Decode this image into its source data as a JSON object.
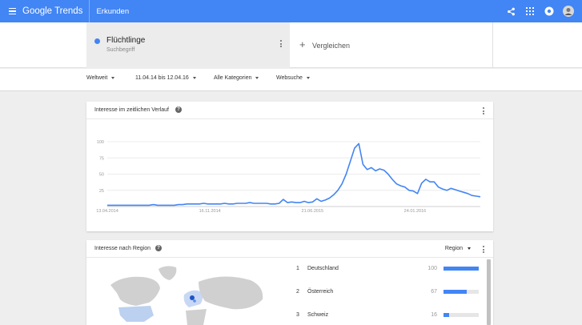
{
  "app": {
    "logo": "Google Trends",
    "section": "Erkunden"
  },
  "term": {
    "name": "Flüchtlinge",
    "type": "Suchbegriff",
    "color": "#4285f4"
  },
  "compare": {
    "label": "Vergleichen"
  },
  "filters": {
    "region": "Weltweit",
    "date_range": "11.04.14 bis 12.04.16",
    "category": "Alle Kategorien",
    "search_type": "Websuche"
  },
  "interest_over_time": {
    "title": "Interesse im zeitlichen Verlauf"
  },
  "chart_data": {
    "type": "line",
    "title": "Interesse im zeitlichen Verlauf",
    "xlabel": "",
    "ylabel": "",
    "ylim": [
      0,
      100
    ],
    "y_ticks": [
      "25",
      "50",
      "75",
      "100"
    ],
    "x_tick_labels": [
      "13.04.2014",
      "16.11.2014",
      "21.06.2015",
      "24.01.2016"
    ],
    "grid": true,
    "series": [
      {
        "color": "#4285f4",
        "values": [
          2,
          2,
          2,
          2,
          2,
          2,
          2,
          2,
          2,
          2,
          2,
          3,
          2,
          2,
          2,
          2,
          2,
          3,
          3,
          4,
          4,
          4,
          4,
          5,
          4,
          4,
          4,
          4,
          5,
          4,
          4,
          5,
          5,
          5,
          6,
          5,
          5,
          5,
          5,
          4,
          4,
          5,
          11,
          6,
          7,
          6,
          6,
          8,
          6,
          7,
          12,
          8,
          10,
          13,
          18,
          25,
          35,
          50,
          70,
          90,
          97,
          65,
          57,
          60,
          55,
          58,
          56,
          50,
          42,
          35,
          32,
          30,
          25,
          24,
          20,
          36,
          42,
          38,
          38,
          30,
          27,
          25,
          28,
          26,
          24,
          22,
          20,
          17,
          16,
          15
        ]
      }
    ]
  },
  "interest_by_region": {
    "title": "Interesse nach Region",
    "dropdown": "Region",
    "rows": [
      {
        "rank": "1",
        "name": "Deutschland",
        "value": "100",
        "percent": 100
      },
      {
        "rank": "2",
        "name": "Österreich",
        "value": "67",
        "percent": 67
      },
      {
        "rank": "3",
        "name": "Schweiz",
        "value": "16",
        "percent": 16
      }
    ]
  },
  "icons": [
    "menu-icon",
    "share-icon",
    "apps-icon",
    "notifications-icon",
    "avatar",
    "more-vert-icon",
    "help-icon",
    "add-icon"
  ]
}
